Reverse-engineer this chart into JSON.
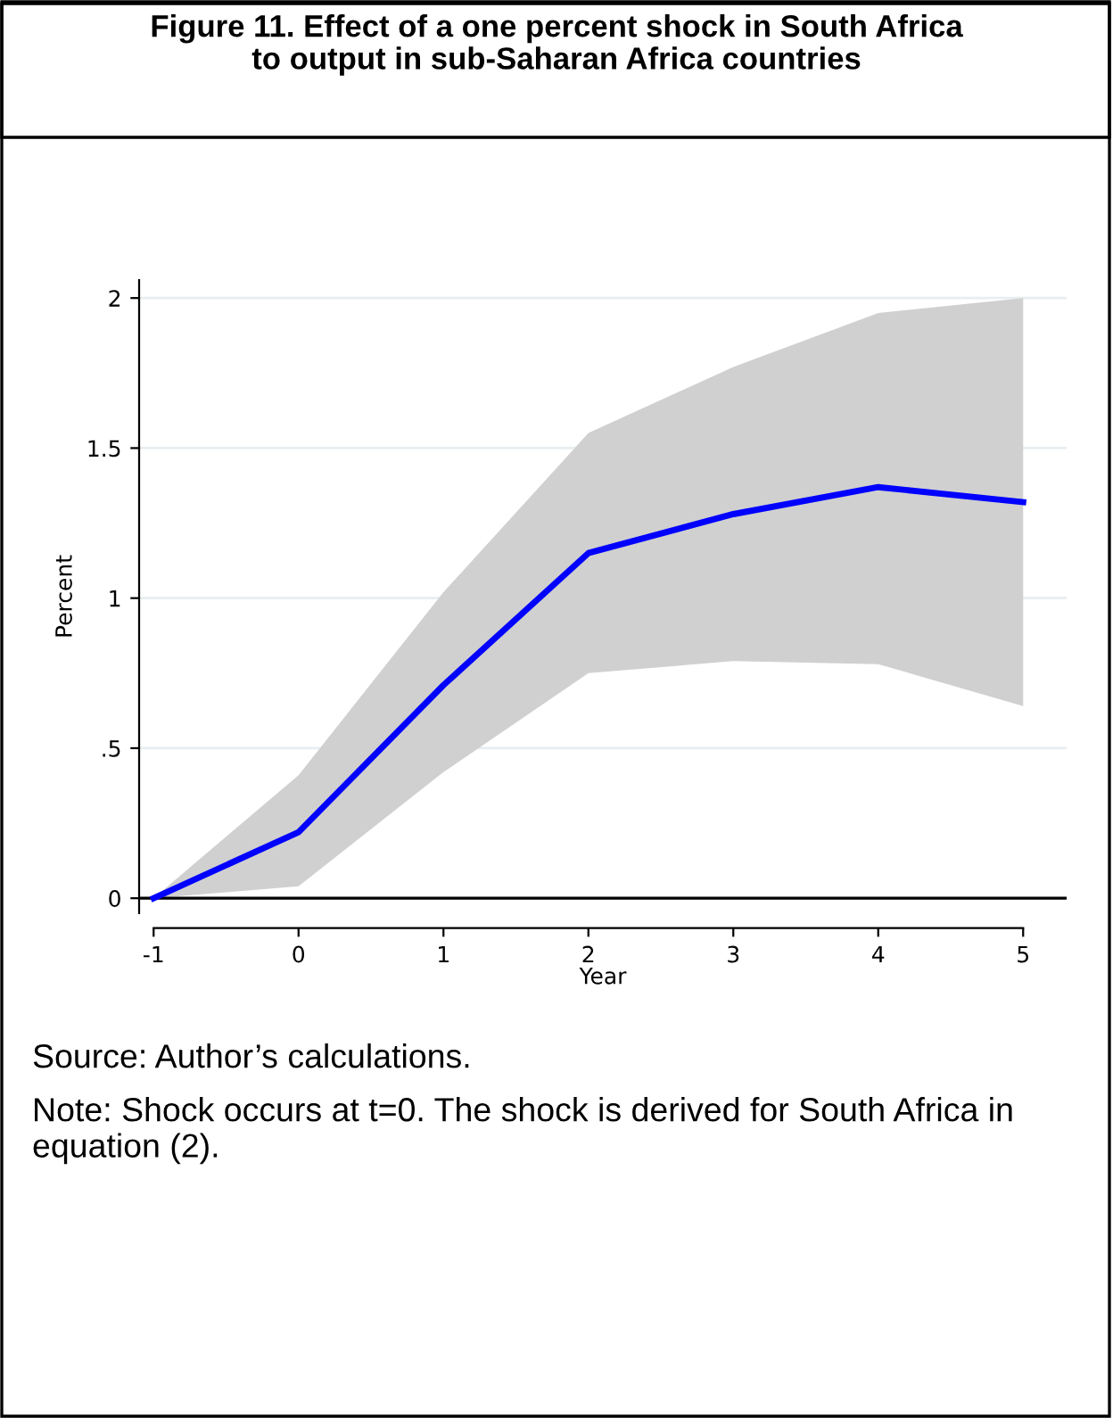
{
  "chart_data": {
    "type": "line",
    "title": "Figure 11. Effect of a one percent shock in South Africa\nto output in sub-Saharan Africa countries",
    "xlabel": "Year",
    "ylabel": "Percent",
    "x": [
      -1,
      0,
      1,
      2,
      3,
      4,
      5
    ],
    "series": [
      {
        "color": "#0000ff",
        "values": [
          0,
          0.22,
          0.71,
          1.15,
          1.28,
          1.37,
          1.32
        ],
        "lower": [
          0,
          0.04,
          0.42,
          0.75,
          0.79,
          0.78,
          0.64
        ],
        "upper": [
          0,
          0.41,
          1.02,
          1.55,
          1.77,
          1.95,
          2.0
        ]
      }
    ],
    "xlim": [
      -1.1,
      5.3
    ],
    "ylim": [
      -0.05,
      2.06
    ],
    "xticks": [
      -1,
      0,
      1,
      2,
      3,
      4,
      5
    ],
    "yticks": [
      0,
      {
        "value": 0.5,
        "label": ".5"
      },
      1,
      1.5,
      2
    ],
    "grid": "y",
    "legend": false,
    "marker": "none",
    "line_style": "solid",
    "ref_lines": [
      {
        "axis": "y",
        "value": 0,
        "color": "#000000"
      }
    ],
    "annotations": [
      "Source: Author’s calculations.",
      "Note: Shock occurs at t=0. The shock is derived for South Africa in equation (2)."
    ]
  }
}
